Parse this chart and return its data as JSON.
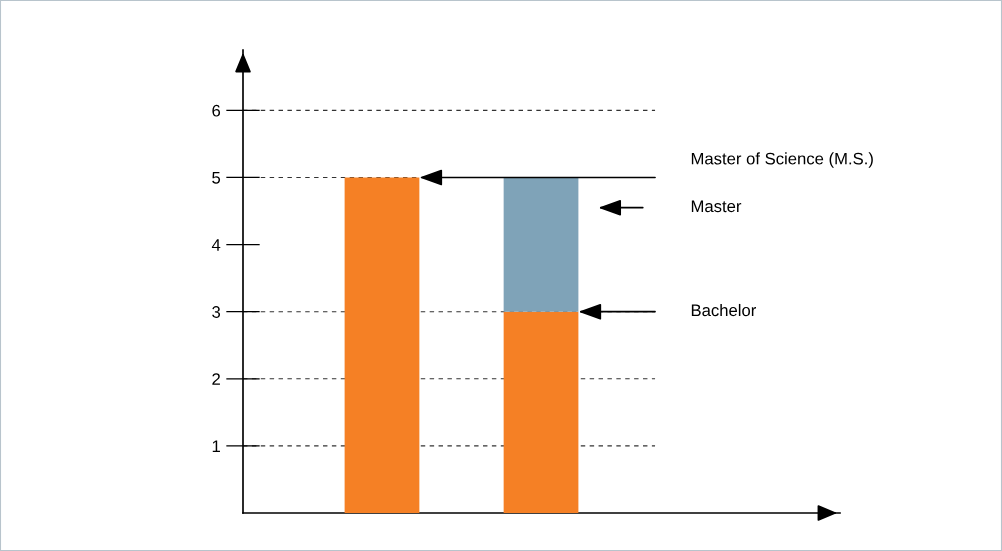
{
  "chart_data": {
    "type": "bar",
    "stacked": true,
    "categories": [
      null,
      null
    ],
    "series": [
      {
        "color": "#f58025",
        "values": [
          5,
          3
        ]
      },
      {
        "color": "#7fa3b8",
        "values": [
          0,
          2
        ]
      }
    ],
    "ylim": [
      0,
      6.9
    ],
    "yticks": [
      1,
      2,
      3,
      4,
      5,
      6
    ],
    "ref_lines": [
      {
        "axis": "y",
        "value": 1,
        "line_style": "dashed",
        "color": "#333333"
      },
      {
        "axis": "y",
        "value": 2,
        "line_style": "dashed",
        "color": "#333333"
      },
      {
        "axis": "y",
        "value": 3,
        "line_style": "dashed",
        "color": "#333333"
      },
      {
        "axis": "y",
        "value": 5,
        "line_style": "dashed",
        "color": "#333333"
      },
      {
        "axis": "y",
        "value": 6,
        "line_style": "dashed",
        "color": "#333333"
      }
    ],
    "annotations": [
      "Master of Science (M.S.)",
      "Master",
      "Bachelor"
    ]
  }
}
